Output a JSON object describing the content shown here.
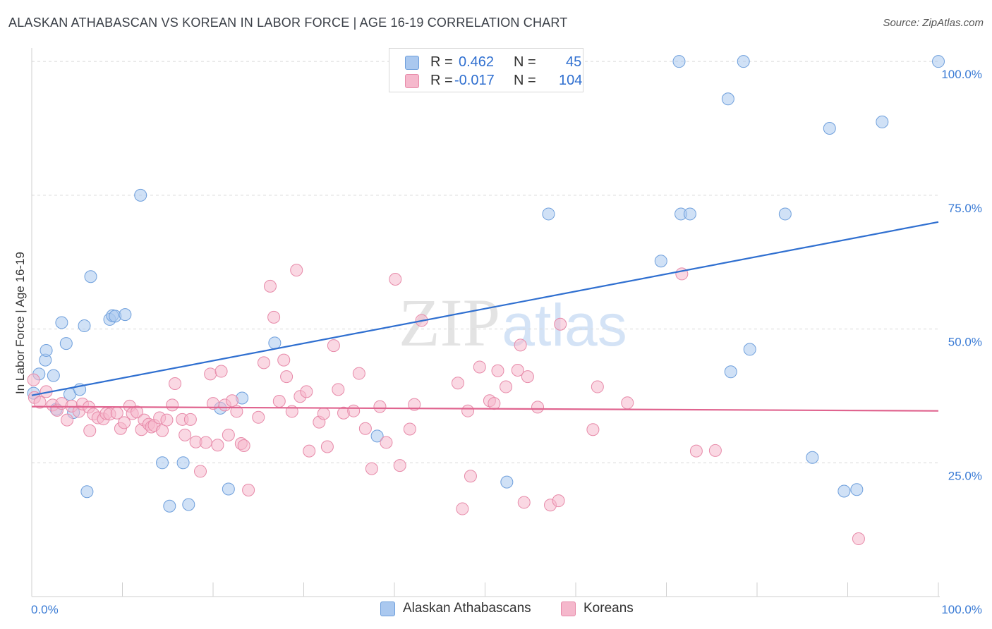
{
  "header": {
    "title": "ALASKAN ATHABASCAN VS KOREAN IN LABOR FORCE | AGE 16-19 CORRELATION CHART",
    "source": "Source: ZipAtlas.com"
  },
  "legend": {
    "series1": {
      "r_label": "R =",
      "r_value": "0.462",
      "n_label": "N =",
      "n_value": "45"
    },
    "series2": {
      "r_label": "R =",
      "r_value": "-0.017",
      "n_label": "N =",
      "n_value": "104"
    }
  },
  "bottom_legend": {
    "series1": "Alaskan Athabascans",
    "series2": "Koreans"
  },
  "watermark": {
    "zip": "ZIP",
    "atlas": "atlas"
  },
  "colors": {
    "blue_fill": "#aac8ef",
    "blue_stroke": "#6e9fdc",
    "blue_line": "#2f6fd0",
    "pink_fill": "#f5b8cc",
    "pink_stroke": "#e78aa9",
    "pink_line": "#e0648f",
    "grid": "#d9d9d9",
    "axis_label": "#3a7bd5"
  },
  "chart_data": {
    "type": "scatter",
    "title": "ALASKAN ATHABASCAN VS KOREAN IN LABOR FORCE | AGE 16-19 CORRELATION CHART",
    "xlabel": "",
    "ylabel": "In Labor Force | Age 16-19",
    "xlim": [
      0,
      100
    ],
    "ylim": [
      0,
      102
    ],
    "x_tick_labels": [
      "0.0%",
      "100.0%"
    ],
    "y_ticks": [
      25,
      50,
      75,
      100
    ],
    "y_tick_labels": [
      "25.0%",
      "50.0%",
      "75.0%",
      "100.0%"
    ],
    "series": [
      {
        "name": "Alaskan Athabascans",
        "r": 0.462,
        "n": 45,
        "trend": {
          "x": [
            0,
            100
          ],
          "y": [
            37.6,
            70.0
          ]
        },
        "points": [
          [
            0.2,
            38.0
          ],
          [
            0.8,
            41.6
          ],
          [
            1.5,
            44.2
          ],
          [
            1.6,
            46.0
          ],
          [
            2.4,
            41.3
          ],
          [
            2.7,
            35.0
          ],
          [
            3.3,
            51.2
          ],
          [
            3.8,
            47.3
          ],
          [
            4.2,
            37.8
          ],
          [
            4.6,
            34.4
          ],
          [
            5.3,
            38.7
          ],
          [
            5.8,
            50.6
          ],
          [
            6.1,
            19.6
          ],
          [
            6.5,
            59.8
          ],
          [
            8.6,
            51.8
          ],
          [
            8.9,
            52.5
          ],
          [
            9.2,
            52.4
          ],
          [
            10.3,
            52.7
          ],
          [
            12.0,
            75.0
          ],
          [
            14.4,
            25.0
          ],
          [
            15.2,
            16.9
          ],
          [
            16.7,
            25.0
          ],
          [
            17.3,
            17.2
          ],
          [
            20.8,
            35.2
          ],
          [
            21.7,
            20.1
          ],
          [
            23.2,
            37.1
          ],
          [
            26.8,
            47.4
          ],
          [
            38.1,
            30.0
          ],
          [
            52.4,
            21.4
          ],
          [
            57.0,
            71.5
          ],
          [
            69.4,
            62.7
          ],
          [
            71.4,
            100.0
          ],
          [
            71.6,
            71.5
          ],
          [
            72.6,
            71.5
          ],
          [
            76.8,
            93.0
          ],
          [
            77.1,
            42.0
          ],
          [
            78.5,
            100.0
          ],
          [
            79.2,
            46.2
          ],
          [
            83.1,
            71.5
          ],
          [
            86.1,
            26.0
          ],
          [
            88.0,
            87.5
          ],
          [
            89.6,
            19.7
          ],
          [
            91.0,
            20.0
          ],
          [
            93.8,
            88.7
          ],
          [
            100.0,
            100.0
          ]
        ]
      },
      {
        "name": "Koreans",
        "r": -0.017,
        "n": 104,
        "trend": {
          "x": [
            0,
            100
          ],
          "y": [
            35.5,
            34.7
          ]
        },
        "points": [
          [
            0.2,
            40.5
          ],
          [
            0.3,
            37.2
          ],
          [
            0.9,
            36.3
          ],
          [
            1.6,
            38.3
          ],
          [
            2.3,
            35.8
          ],
          [
            2.8,
            34.8
          ],
          [
            3.3,
            36.1
          ],
          [
            3.9,
            33.0
          ],
          [
            4.4,
            35.6
          ],
          [
            5.2,
            34.6
          ],
          [
            5.6,
            36.0
          ],
          [
            6.3,
            35.4
          ],
          [
            6.4,
            31.0
          ],
          [
            6.8,
            34.1
          ],
          [
            7.3,
            33.4
          ],
          [
            7.9,
            33.2
          ],
          [
            8.2,
            34.2
          ],
          [
            8.6,
            34.1
          ],
          [
            9.4,
            34.3
          ],
          [
            9.8,
            31.4
          ],
          [
            10.2,
            32.5
          ],
          [
            10.8,
            35.6
          ],
          [
            11.1,
            34.2
          ],
          [
            11.6,
            34.5
          ],
          [
            12.1,
            31.2
          ],
          [
            12.4,
            33.0
          ],
          [
            12.9,
            32.2
          ],
          [
            13.2,
            31.7
          ],
          [
            13.5,
            32.0
          ],
          [
            14.1,
            33.4
          ],
          [
            14.4,
            31.0
          ],
          [
            14.9,
            33.0
          ],
          [
            15.5,
            35.8
          ],
          [
            15.8,
            39.8
          ],
          [
            16.6,
            33.1
          ],
          [
            16.9,
            30.2
          ],
          [
            17.5,
            33.1
          ],
          [
            18.1,
            28.9
          ],
          [
            18.6,
            23.4
          ],
          [
            19.2,
            28.8
          ],
          [
            19.7,
            41.6
          ],
          [
            20.0,
            36.1
          ],
          [
            20.5,
            28.3
          ],
          [
            20.9,
            42.1
          ],
          [
            21.3,
            35.8
          ],
          [
            21.7,
            30.2
          ],
          [
            22.1,
            36.6
          ],
          [
            22.6,
            34.6
          ],
          [
            23.1,
            28.6
          ],
          [
            23.4,
            28.2
          ],
          [
            23.9,
            19.9
          ],
          [
            25.0,
            33.5
          ],
          [
            25.6,
            43.7
          ],
          [
            26.3,
            58.0
          ],
          [
            26.7,
            52.2
          ],
          [
            27.3,
            36.5
          ],
          [
            27.8,
            44.2
          ],
          [
            28.1,
            41.1
          ],
          [
            28.7,
            34.6
          ],
          [
            29.2,
            61.0
          ],
          [
            29.6,
            37.4
          ],
          [
            30.3,
            38.3
          ],
          [
            30.6,
            27.2
          ],
          [
            31.7,
            32.6
          ],
          [
            32.2,
            34.2
          ],
          [
            32.6,
            28.0
          ],
          [
            33.3,
            46.9
          ],
          [
            33.8,
            38.7
          ],
          [
            34.4,
            34.3
          ],
          [
            35.5,
            34.7
          ],
          [
            36.1,
            41.7
          ],
          [
            36.8,
            31.4
          ],
          [
            37.5,
            23.9
          ],
          [
            38.4,
            35.5
          ],
          [
            39.1,
            28.8
          ],
          [
            40.1,
            59.3
          ],
          [
            40.6,
            24.5
          ],
          [
            41.7,
            31.3
          ],
          [
            42.2,
            35.9
          ],
          [
            43.0,
            51.6
          ],
          [
            47.0,
            39.9
          ],
          [
            47.5,
            16.4
          ],
          [
            48.1,
            34.7
          ],
          [
            48.4,
            22.5
          ],
          [
            49.4,
            42.9
          ],
          [
            50.5,
            36.6
          ],
          [
            51.0,
            36.1
          ],
          [
            51.4,
            42.2
          ],
          [
            52.3,
            39.2
          ],
          [
            53.6,
            42.3
          ],
          [
            53.9,
            47.0
          ],
          [
            54.3,
            17.6
          ],
          [
            54.7,
            41.1
          ],
          [
            55.8,
            35.4
          ],
          [
            57.2,
            17.1
          ],
          [
            58.1,
            17.9
          ],
          [
            58.3,
            50.9
          ],
          [
            61.9,
            31.2
          ],
          [
            62.4,
            39.2
          ],
          [
            65.7,
            36.2
          ],
          [
            71.7,
            60.3
          ],
          [
            73.3,
            27.2
          ],
          [
            75.4,
            27.3
          ],
          [
            91.2,
            10.8
          ]
        ]
      }
    ]
  }
}
